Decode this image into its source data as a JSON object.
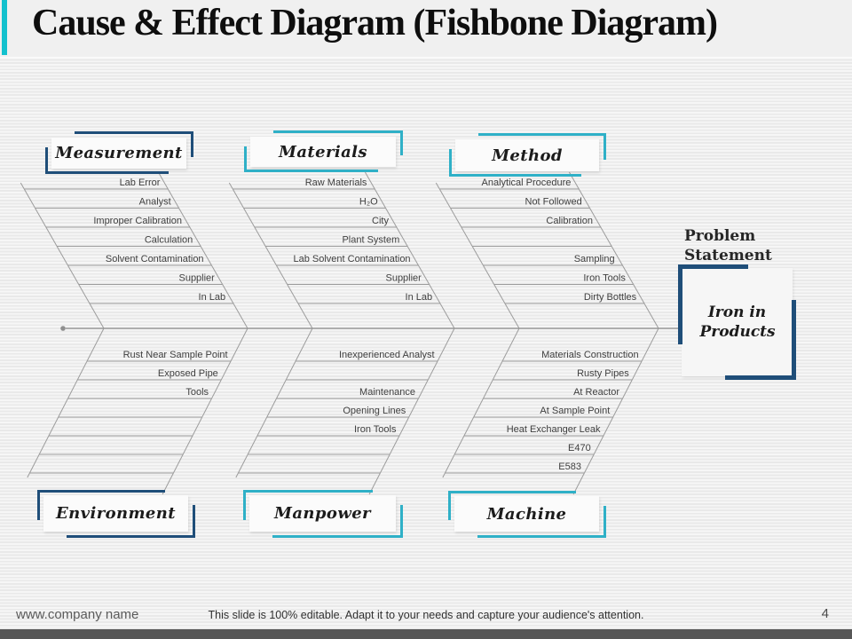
{
  "slide": {
    "title": "Cause & Effect Diagram (Fishbone Diagram)",
    "page_number": "4",
    "footer": {
      "website": "www.company name",
      "note": "This slide is 100% editable. Adapt it to your needs and capture your audience's attention."
    }
  },
  "colors": {
    "navy": "#1f4e79",
    "teal": "#2fb0c7",
    "cyan_bar": "#13c1ce",
    "line": "#9c9c9c",
    "label": "#3f3f3f",
    "footer_bar": "#575757"
  },
  "problem": {
    "heading": "Problem Statement",
    "statement": "Iron in Products"
  },
  "categories": [
    {
      "name": "Measurement",
      "side": "top",
      "accent": "navy",
      "causes": [
        "Lab Error",
        "Analyst",
        "Improper Calibration",
        "Calculation",
        "Solvent Contamination",
        "Supplier",
        "In Lab"
      ]
    },
    {
      "name": "Materials",
      "side": "top",
      "accent": "teal",
      "causes": [
        "Raw Materials",
        "H₂O",
        "City",
        "Plant System",
        "Lab Solvent Contamination",
        "Supplier",
        "In Lab"
      ]
    },
    {
      "name": "Method",
      "side": "top",
      "accent": "teal",
      "causes": [
        "Analytical Procedure",
        "Not Followed",
        "Calibration",
        "",
        "Sampling",
        "Iron Tools",
        "Dirty Bottles"
      ]
    },
    {
      "name": "Environment",
      "side": "bottom",
      "accent": "navy",
      "causes": [
        "Rust Near Sample Point",
        "Exposed Pipe",
        "Tools",
        "",
        "",
        "",
        ""
      ]
    },
    {
      "name": "Manpower",
      "side": "bottom",
      "accent": "teal",
      "causes": [
        "Inexperienced Analyst",
        "",
        "Maintenance",
        "Opening Lines",
        "Iron Tools",
        "",
        ""
      ]
    },
    {
      "name": "Machine",
      "side": "bottom",
      "accent": "teal",
      "causes": [
        "Materials Construction",
        "Rusty Pipes",
        "At Reactor",
        "At Sample Point",
        "Heat Exchanger Leak",
        "E470",
        "E583"
      ]
    }
  ]
}
